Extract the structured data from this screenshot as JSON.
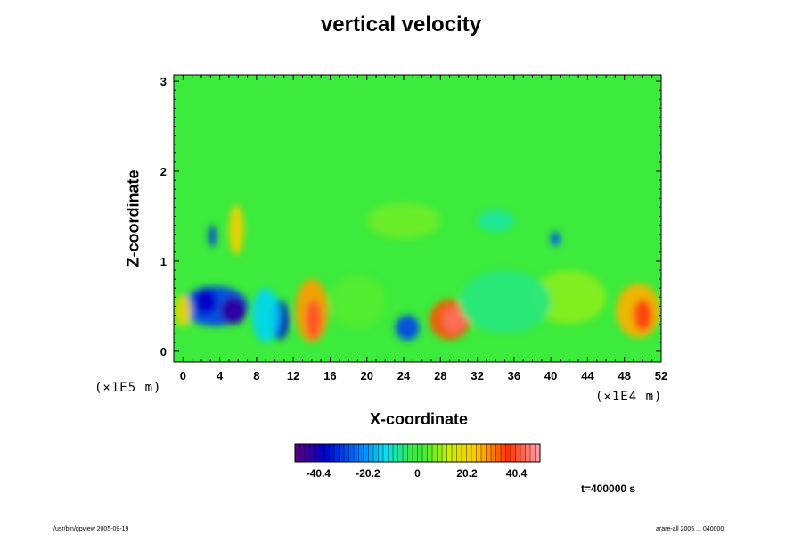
{
  "chart_data": {
    "type": "heatmap",
    "title": "vertical velocity",
    "xlabel": "X-coordinate",
    "ylabel": "Z-coordinate",
    "x_scale_label": "(×1E4 m)",
    "z_scale_label": "(×1E5 m)",
    "x_ticks": [
      0,
      4,
      8,
      12,
      16,
      20,
      24,
      28,
      32,
      36,
      40,
      44,
      48,
      52
    ],
    "y_ticks": [
      0,
      1,
      2,
      3
    ],
    "xlim": [
      -1,
      52
    ],
    "ylim": [
      -0.12,
      3.07
    ],
    "colorbar": {
      "min": -50,
      "max": 50,
      "tick_values": [
        -40.4,
        -20.2,
        0,
        20.2,
        40.4
      ],
      "tick_labels": [
        "-40.4",
        "-20.2",
        "0",
        "20.2",
        "40.4"
      ]
    },
    "background_value": 0,
    "features": [
      {
        "x": 3.5,
        "z": 0.5,
        "rx": 3.6,
        "rz": 0.22,
        "value": -30
      },
      {
        "x": 5.5,
        "z": 0.45,
        "rx": 1.4,
        "rz": 0.15,
        "value": -44
      },
      {
        "x": 2.5,
        "z": 0.55,
        "rx": 1.2,
        "rz": 0.14,
        "value": -38
      },
      {
        "x": 10.5,
        "z": 0.35,
        "rx": 1.0,
        "rz": 0.22,
        "value": -36
      },
      {
        "x": 9.0,
        "z": 0.4,
        "rx": 1.5,
        "rz": 0.3,
        "value": -14
      },
      {
        "x": 24.4,
        "z": 0.26,
        "rx": 1.3,
        "rz": 0.14,
        "value": -30
      },
      {
        "x": 14.0,
        "z": 0.45,
        "rx": 1.8,
        "rz": 0.35,
        "value": 28
      },
      {
        "x": 14.2,
        "z": 0.35,
        "rx": 0.8,
        "rz": 0.22,
        "value": 40
      },
      {
        "x": 29.0,
        "z": 0.35,
        "rx": 2.2,
        "rz": 0.22,
        "value": 34
      },
      {
        "x": 29.5,
        "z": 0.35,
        "rx": 1.2,
        "rz": 0.14,
        "value": 44
      },
      {
        "x": 49.5,
        "z": 0.45,
        "rx": 2.4,
        "rz": 0.3,
        "value": 26
      },
      {
        "x": 50.0,
        "z": 0.4,
        "rx": 1.0,
        "rz": 0.18,
        "value": 38
      },
      {
        "x": 5.8,
        "z": 1.35,
        "rx": 0.8,
        "rz": 0.28,
        "value": 22
      },
      {
        "x": 3.2,
        "z": 1.28,
        "rx": 0.4,
        "rz": 0.12,
        "value": -32
      },
      {
        "x": 0.0,
        "z": 0.45,
        "rx": 0.9,
        "rz": 0.18,
        "value": 20
      },
      {
        "x": 42.0,
        "z": 0.6,
        "rx": 4.0,
        "rz": 0.3,
        "value": 8
      },
      {
        "x": 35.0,
        "z": 0.55,
        "rx": 5.0,
        "rz": 0.35,
        "value": -6
      },
      {
        "x": 19.0,
        "z": 0.55,
        "rx": 3.0,
        "rz": 0.3,
        "value": 4
      },
      {
        "x": 24.0,
        "z": 1.45,
        "rx": 4.0,
        "rz": 0.2,
        "value": 6
      },
      {
        "x": 40.5,
        "z": 1.25,
        "rx": 0.5,
        "rz": 0.08,
        "value": -28
      },
      {
        "x": 34.0,
        "z": 1.45,
        "rx": 2.0,
        "rz": 0.12,
        "value": -8
      }
    ]
  },
  "info": {
    "time": "t=400000 s",
    "footer_left": "/usr/bin/gpview 2005-09-19",
    "footer_right": "arare-all 2005 ... 040000"
  }
}
